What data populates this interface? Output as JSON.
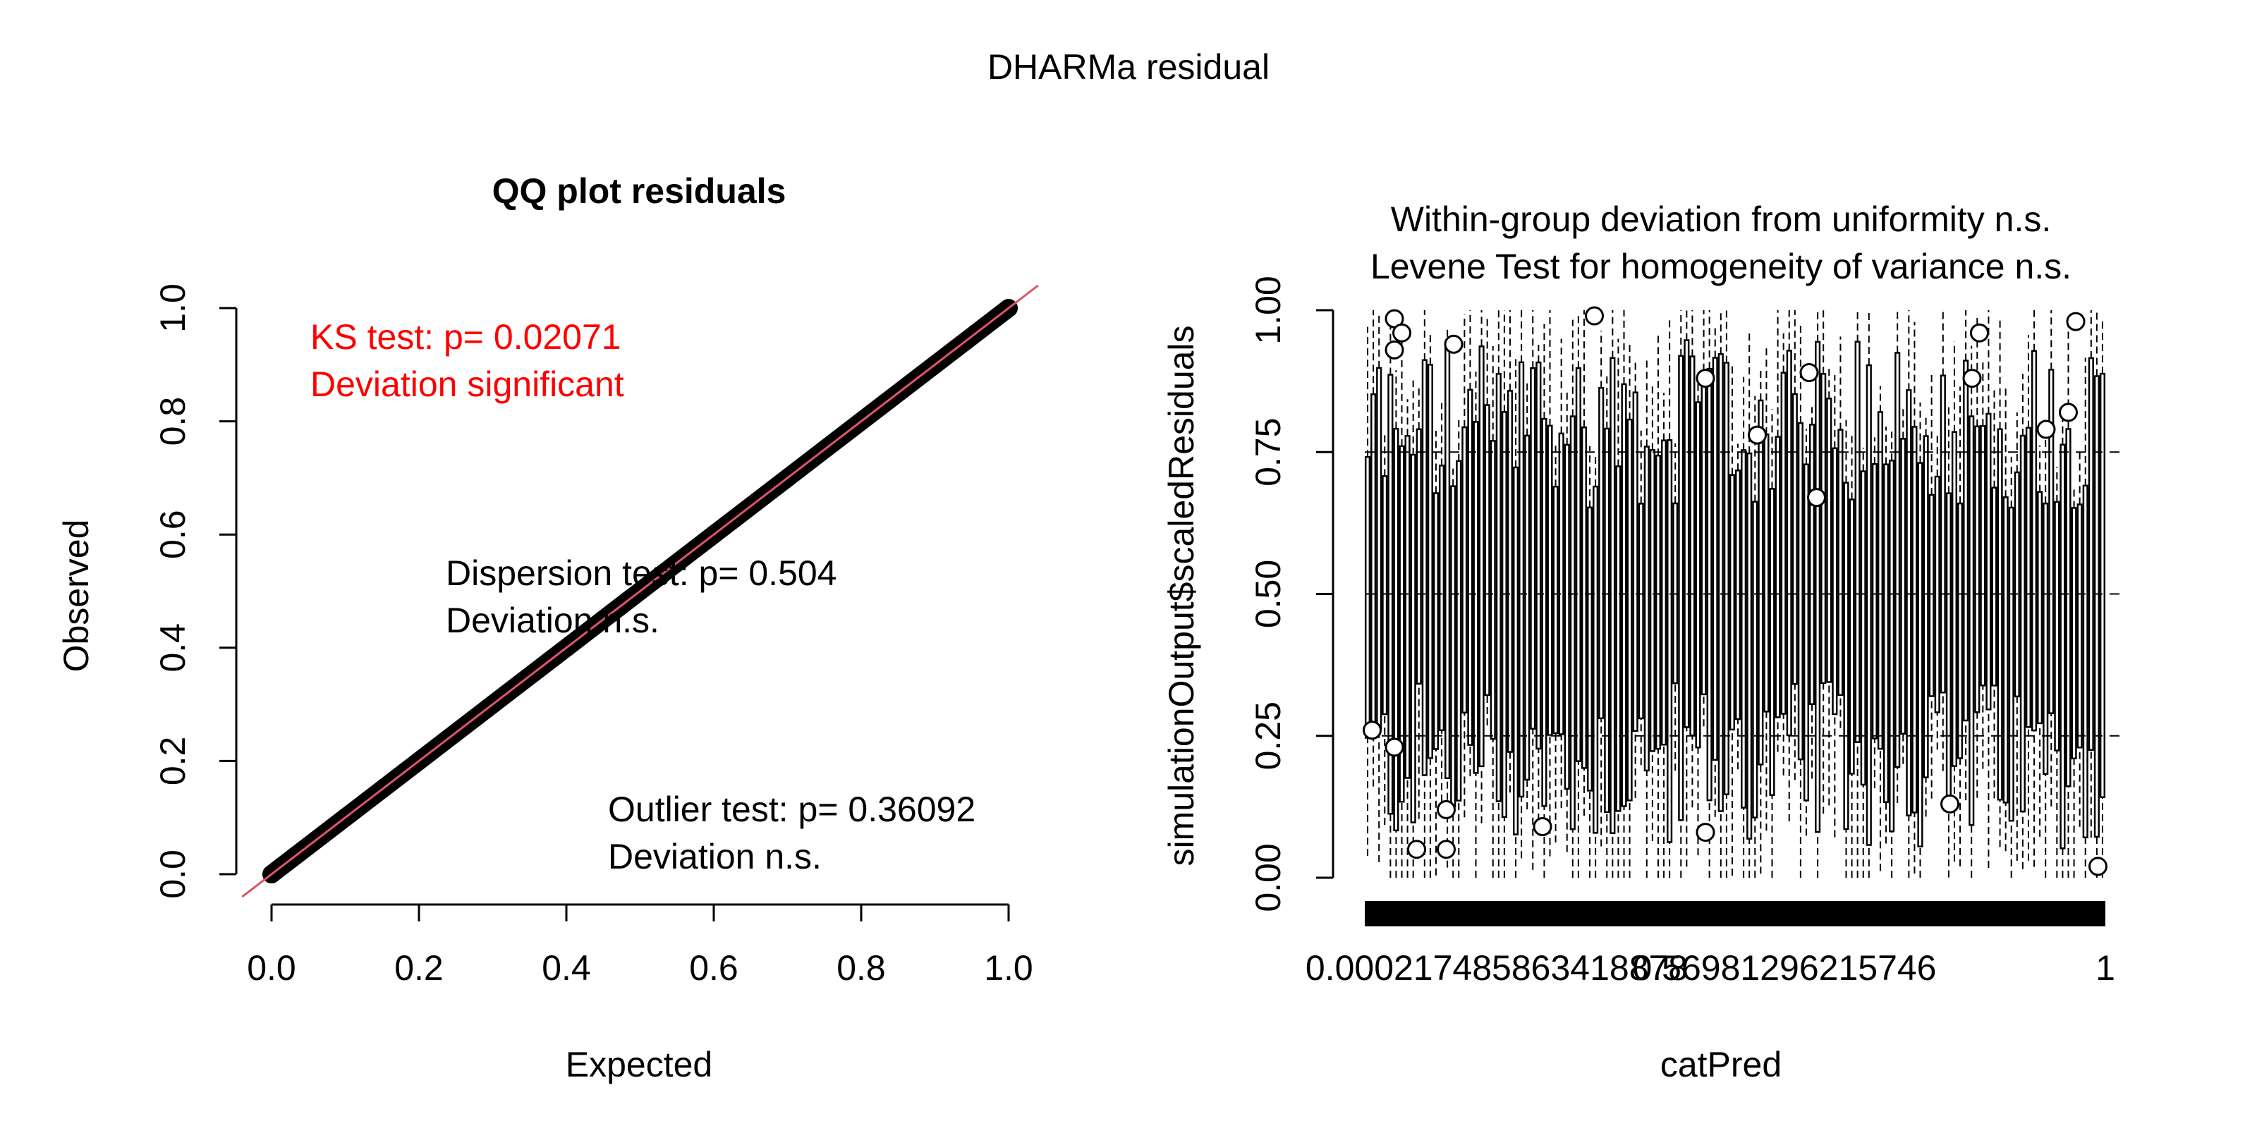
{
  "figure": {
    "title": "DHARMa residual"
  },
  "colors": {
    "background": "#ffffff",
    "ink": "#000000",
    "ks_text": "#ff0000",
    "reference_line": "#df536b"
  },
  "chart_data": [
    {
      "type": "scatter",
      "title": "QQ plot residuals",
      "xlabel": "Expected",
      "ylabel": "Observed",
      "xlim": [
        0,
        1
      ],
      "ylim": [
        0,
        1
      ],
      "x_ticks": [
        "0.0",
        "0.2",
        "0.4",
        "0.6",
        "0.8",
        "1.0"
      ],
      "y_ticks": [
        "0.0",
        "0.2",
        "0.4",
        "0.6",
        "0.8",
        "1.0"
      ],
      "grid": false,
      "series": [
        {
          "points": [
            [
              0.0,
              0.0
            ],
            [
              0.1,
              0.1
            ],
            [
              0.2,
              0.2
            ],
            [
              0.3,
              0.3
            ],
            [
              0.4,
              0.4
            ],
            [
              0.5,
              0.5
            ],
            [
              0.6,
              0.6
            ],
            [
              0.7,
              0.7
            ],
            [
              0.8,
              0.8
            ],
            [
              0.9,
              0.9
            ],
            [
              1.0,
              1.0
            ]
          ]
        }
      ],
      "reference_line": {
        "slope": 1,
        "intercept": 0
      },
      "annotations": {
        "ks_line1": "KS test: p= 0.02071",
        "ks_line2": "Deviation  significant",
        "dispersion_line1": "Dispersion test: p= 0.504",
        "dispersion_line2": "Deviation  n.s.",
        "outlier_line1": "Outlier test: p= 0.36092",
        "outlier_line2": "Deviation  n.s."
      }
    },
    {
      "type": "boxplot",
      "title_line1": "Within-group deviation from uniformity n.s.",
      "title_line2": "Levene Test for homogeneity of variance n.s.",
      "xlabel": "catPred",
      "ylabel": "simulationOutput$scaledResiduals",
      "ylim": [
        0,
        1
      ],
      "y_ticks": [
        "0.00",
        "0.25",
        "0.50",
        "0.75",
        "1.00"
      ],
      "x_tick_labels": [
        "0.000217485863418878",
        "0.56981296215746",
        "1"
      ],
      "reference_lines": [
        0.25,
        0.5,
        0.75
      ],
      "outliers": [
        [
          0.04,
          0.985
        ],
        [
          0.04,
          0.93
        ],
        [
          0.31,
          0.99
        ],
        [
          0.05,
          0.96
        ],
        [
          0.12,
          0.94
        ],
        [
          0.46,
          0.88
        ],
        [
          0.6,
          0.89
        ],
        [
          0.83,
          0.96
        ],
        [
          0.82,
          0.88
        ],
        [
          0.96,
          0.98
        ],
        [
          0.95,
          0.82
        ],
        [
          0.92,
          0.79
        ],
        [
          0.53,
          0.78
        ],
        [
          0.61,
          0.67
        ],
        [
          0.04,
          0.23
        ],
        [
          0.01,
          0.26
        ],
        [
          0.11,
          0.12
        ],
        [
          0.07,
          0.05
        ],
        [
          0.11,
          0.05
        ],
        [
          0.24,
          0.09
        ],
        [
          0.46,
          0.08
        ],
        [
          0.79,
          0.13
        ],
        [
          0.99,
          0.02
        ]
      ]
    }
  ]
}
